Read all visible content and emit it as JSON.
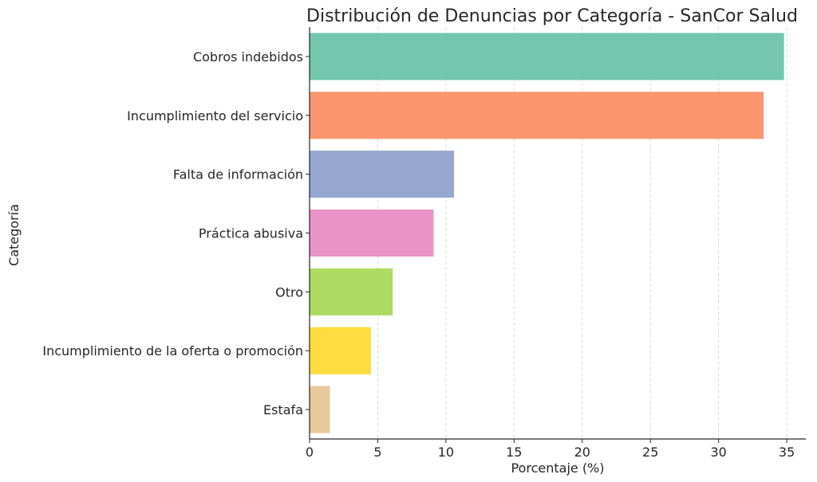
{
  "chart_data": {
    "type": "bar",
    "orientation": "horizontal",
    "title": "Distribución de Denuncias por Categoría - SanCor Salud",
    "xlabel": "Porcentaje (%)",
    "ylabel": "Categoría",
    "xlim": [
      0,
      36.4
    ],
    "xticks": [
      0,
      5,
      10,
      15,
      20,
      25,
      30,
      35
    ],
    "grid": "vertical-dashed",
    "categories": [
      "Cobros indebidos",
      "Incumplimiento del servicio",
      "Falta de información",
      "Práctica abusiva",
      "Otro",
      "Incumplimiento de la oferta o promoción",
      "Estafa"
    ],
    "values": [
      34.8,
      33.3,
      10.6,
      9.1,
      6.1,
      4.5,
      1.5
    ],
    "colors": [
      "#66c2a5",
      "#fc8d62",
      "#8da0cb",
      "#e78ac3",
      "#a6d854",
      "#ffd92f",
      "#e5c494"
    ]
  }
}
